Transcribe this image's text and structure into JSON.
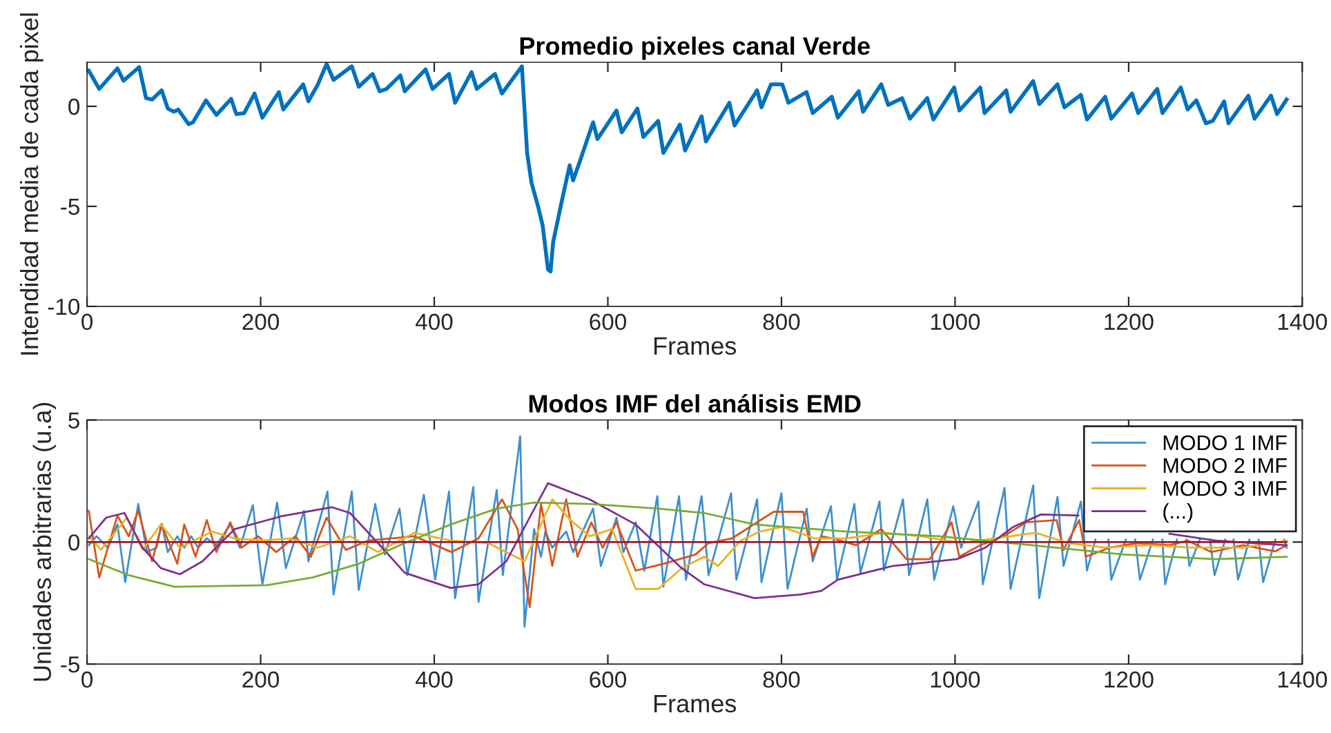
{
  "chart_data": [
    {
      "type": "line",
      "title": "Promedio pixeles canal Verde",
      "xlabel": "Frames",
      "ylabel": "Intendidad media de cada pixel",
      "xlim": [
        0,
        1400
      ],
      "xticks": [
        0,
        200,
        400,
        600,
        800,
        1000,
        1200,
        1400
      ],
      "ylim": [
        -10,
        2.2
      ],
      "yticks": [
        -10,
        -5,
        0
      ],
      "grid": false,
      "legend": false,
      "series": [
        {
          "color": "#0072bd",
          "x": [
            2,
            14,
            35,
            42,
            60,
            68,
            75,
            86,
            93,
            100,
            105,
            117,
            122,
            137,
            149,
            166,
            172,
            181,
            193,
            202,
            221,
            226,
            249,
            255,
            266,
            276,
            284,
            305,
            313,
            329,
            337,
            345,
            361,
            366,
            390,
            398,
            417,
            424,
            443,
            449,
            470,
            478,
            501,
            507,
            512,
            520,
            525,
            531,
            534,
            537,
            547,
            556,
            560,
            568,
            583,
            588,
            610,
            616,
            634,
            641,
            658,
            664,
            683,
            689,
            708,
            713,
            740,
            746,
            772,
            777,
            788,
            801,
            808,
            829,
            836,
            858,
            865,
            889,
            894,
            915,
            923,
            939,
            948,
            968,
            975,
            999,
            1005,
            1029,
            1034,
            1059,
            1064,
            1090,
            1097,
            1118,
            1126,
            1145,
            1152,
            1173,
            1180,
            1204,
            1211,
            1233,
            1239,
            1260,
            1268,
            1278,
            1289,
            1297,
            1310,
            1315,
            1338,
            1345,
            1364,
            1371,
            1382
          ],
          "values": [
            1.78,
            0.87,
            1.9,
            1.28,
            1.96,
            0.41,
            0.34,
            0.8,
            -0.11,
            -0.27,
            -0.16,
            -0.89,
            -0.8,
            0.3,
            -0.43,
            0.37,
            -0.39,
            -0.34,
            0.64,
            -0.57,
            0.71,
            -0.16,
            1.1,
            0.25,
            1.1,
            2.12,
            1.32,
            2.0,
            0.98,
            1.62,
            0.75,
            0.87,
            1.55,
            0.75,
            1.85,
            0.87,
            1.62,
            0.18,
            1.71,
            0.87,
            1.62,
            0.64,
            2.0,
            -2.33,
            -3.81,
            -5.07,
            -5.98,
            -8.15,
            -8.26,
            -6.78,
            -4.73,
            -2.95,
            -3.7,
            -2.72,
            -0.8,
            -1.64,
            -0.21,
            -1.3,
            -0.11,
            -1.53,
            -0.73,
            -2.33,
            -0.91,
            -2.21,
            -0.5,
            -1.76,
            0.18,
            -0.96,
            0.8,
            -0.05,
            1.1,
            1.1,
            0.18,
            0.71,
            -0.34,
            0.48,
            -0.57,
            0.75,
            -0.27,
            1.1,
            0.07,
            0.41,
            -0.62,
            0.41,
            -0.66,
            0.94,
            -0.21,
            0.94,
            -0.34,
            0.8,
            -0.27,
            1.26,
            0.11,
            1.1,
            -0.05,
            0.57,
            -0.66,
            0.48,
            -0.62,
            0.64,
            -0.34,
            0.87,
            -0.34,
            0.94,
            -0.16,
            0.3,
            -0.85,
            -0.73,
            0.25,
            -0.85,
            0.53,
            -0.62,
            0.53,
            -0.39,
            0.34
          ]
        }
      ]
    },
    {
      "type": "line",
      "title": "Modos IMF del análisis EMD",
      "xlabel": "Frames",
      "ylabel": "Unidades arbitrarias (u.a)",
      "xlim": [
        0,
        1400
      ],
      "xticks": [
        0,
        200,
        400,
        600,
        800,
        1000,
        1200,
        1400
      ],
      "ylim": [
        -5,
        5
      ],
      "yticks": [
        -5,
        0,
        5
      ],
      "grid": false,
      "legend": "top right",
      "series": [
        {
          "name": "MODO 1 IMF",
          "color": "#3b8fd0",
          "x": [
            2,
            11,
            24,
            35,
            44,
            59,
            69,
            80,
            86,
            93,
            104,
            112,
            120,
            128,
            138,
            149,
            165,
            176,
            191,
            202,
            219,
            229,
            250,
            255,
            277,
            284,
            305,
            313,
            332,
            343,
            360,
            369,
            388,
            401,
            417,
            424,
            445,
            451,
            472,
            479,
            499,
            504,
            515,
            523,
            528,
            536,
            552,
            560,
            583,
            592,
            610,
            618,
            632,
            642,
            657,
            664,
            682,
            690,
            708,
            716,
            742,
            748,
            772,
            777,
            800,
            807,
            829,
            836,
            857,
            864,
            884,
            891,
            913,
            918,
            940,
            947,
            968,
            976,
            998,
            1007,
            1013,
            1027,
            1032,
            1057,
            1064,
            1090,
            1097,
            1118,
            1125,
            1145,
            1152,
            1161.7,
            1173,
            1176.6,
            1180,
            1196.8,
            1205,
            1207.6,
            1213,
            1227.9,
            1237,
            1238.8,
            1242,
            1255.6,
            1263,
            1266.4,
            1270,
            1282.1,
            1291,
            1293.8,
            1299,
            1311.3,
            1318,
            1320.8,
            1326,
            1339,
            1347,
            1349.8,
            1355,
            1369,
            1374,
            1379.2,
            1382
          ],
          "values": [
            -0.13,
            0.24,
            -0.23,
            0.72,
            -1.64,
            1.56,
            -0.41,
            -0.23,
            0.75,
            -0.41,
            0.24,
            -0.23,
            0.24,
            -0.23,
            0.15,
            -0.13,
            0.72,
            -0.23,
            1.51,
            -1.73,
            1.62,
            -1.07,
            1.28,
            -0.79,
            2.07,
            -2.15,
            2.07,
            -1.96,
            1.56,
            -0.51,
            1.37,
            -1.36,
            1.94,
            -1.54,
            2.07,
            -2.3,
            2.26,
            -2.45,
            2.13,
            -1.36,
            4.33,
            -3.47,
            0.53,
            -0.6,
            0.43,
            -0.23,
            0.43,
            -0.41,
            1.37,
            -0.98,
            1.0,
            -0.41,
            0.81,
            -1.17,
            1.88,
            -1.83,
            1.88,
            -1.54,
            1.88,
            -1.36,
            2.0,
            -1.54,
            1.75,
            -1.64,
            2.0,
            -1.92,
            1.37,
            -0.79,
            1.47,
            -1.54,
            1.56,
            -1.26,
            1.66,
            -1.17,
            1.75,
            -1.36,
            1.75,
            -1.54,
            1.47,
            -0.23,
            0.34,
            1.66,
            -1.73,
            2.22,
            -1.92,
            2.32,
            -2.3,
            1.85,
            -0.98,
            1.66,
            -1.17,
            0.1,
            null,
            0.1,
            -1.54,
            0.1,
            null,
            0.1,
            -1.54,
            0.1,
            null,
            0.1,
            -1.73,
            0.1,
            null,
            0.1,
            -0.98,
            0.1,
            null,
            0.1,
            -1.36,
            0.1,
            null,
            0.1,
            -1.54,
            0.1,
            null,
            0.1,
            -1.64,
            0.1,
            null,
            0.1,
            -0.23
          ]
        },
        {
          "name": "MODO 2 IMF",
          "color": "#d95319",
          "x": [
            2,
            14,
            24,
            35,
            48,
            59,
            75,
            86,
            104,
            112,
            125,
            138,
            149,
            165,
            178,
            197,
            218,
            240,
            258,
            276,
            298,
            324,
            377,
            420,
            451,
            478,
            496,
            510,
            523,
            536,
            552,
            565,
            581,
            594,
            610,
            632,
            664,
            701,
            716,
            743,
            772,
            791,
            825,
            836,
            846,
            859,
            886,
            915,
            944,
            971,
            996,
            1005,
            1029,
            1056,
            1082,
            1117,
            1125,
            1143,
            1151,
            1178,
            1210,
            1247,
            1268,
            1295,
            1332,
            1369,
            1382
          ],
          "values": [
            1.28,
            -1.45,
            -0.23,
            1.09,
            0.24,
            1.28,
            -0.79,
            0.72,
            -0.89,
            0.72,
            -0.6,
            0.9,
            -0.41,
            0.81,
            -0.23,
            0.24,
            -0.41,
            0.24,
            -0.6,
            1.0,
            -0.32,
            0.06,
            0.24,
            -0.41,
            0.15,
            1.75,
            0.53,
            -2.67,
            1.56,
            -0.98,
            1.75,
            -0.6,
            0.81,
            -0.23,
            0.81,
            -1.17,
            -0.89,
            -0.51,
            -0.04,
            0.15,
            0.81,
            1.24,
            1.24,
            -0.6,
            0.24,
            0.15,
            -0.13,
            0.53,
            -0.7,
            -0.7,
            0.81,
            -0.6,
            -0.13,
            0.24,
            0.81,
            0.9,
            -0.32,
            0.9,
            -0.6,
            -0.23,
            -0.04,
            -0.13,
            0.06,
            -0.41,
            -0.13,
            -0.38,
            -0.13
          ]
        },
        {
          "name": "MODO 3 IMF",
          "color": "#edb120",
          "x": [
            2,
            16,
            46,
            64,
            85,
            107,
            144,
            170,
            202,
            234,
            266,
            303,
            335,
            377,
            419,
            462,
            504,
            536,
            557,
            579,
            605,
            632,
            658,
            685,
            711,
            727,
            753,
            775,
            801,
            838,
            875,
            918,
            960,
            1008,
            1045,
            1093,
            1130,
            1173,
            1221,
            1274,
            1332,
            1382
          ],
          "values": [
            0.24,
            -0.32,
            1.0,
            -0.32,
            0.72,
            -0.23,
            0.43,
            0.15,
            0.06,
            0.15,
            -0.23,
            0.24,
            -0.41,
            0.38,
            0.06,
            -0.04,
            -0.79,
            1.75,
            0.9,
            0.24,
            0.53,
            -1.92,
            -1.92,
            -1.07,
            -0.6,
            -0.98,
            0.06,
            0.43,
            0.62,
            0.15,
            0.15,
            0.38,
            0.24,
            -0.04,
            0.15,
            0.38,
            -0.04,
            -0.23,
            -0.13,
            -0.23,
            -0.23,
            0.06
          ]
        },
        {
          "name": "(...)",
          "color": "#7e2f8e",
          "x": [
            2,
            22,
            43,
            64,
            85,
            107,
            133,
            170,
            223,
            282,
            303,
            340,
            366,
            419,
            451,
            483,
            531,
            579,
            632,
            685,
            711,
            769,
            822,
            846,
            865,
            928,
            1002,
            1035,
            1067,
            1099,
            1142,
            1168,
            1247,
            1300,
            1382
          ],
          "values": [
            0.15,
            1.0,
            1.19,
            -0.23,
            -1.07,
            -1.32,
            -0.79,
            0.53,
            1.05,
            1.43,
            1.19,
            -0.23,
            -1.26,
            -1.88,
            -1.73,
            -0.79,
            2.41,
            1.75,
            0.72,
            -1.07,
            -1.73,
            -2.3,
            -2.15,
            -2.0,
            -1.54,
            -0.98,
            -0.7,
            -0.23,
            0.62,
            1.13,
            1.09,
            null,
            0.34,
            0.06,
            -0.13
          ]
        },
        {
          "color": "#77ac30",
          "x": [
            2,
            48,
            101,
            207,
            260,
            313,
            366,
            419,
            472,
            515,
            579,
            658,
            711,
            769,
            875,
            981,
            1088,
            1194,
            1300,
            1382
          ],
          "values": [
            -0.7,
            -1.36,
            -1.83,
            -1.77,
            -1.45,
            -0.89,
            -0.04,
            0.72,
            1.37,
            1.62,
            1.56,
            1.37,
            1.19,
            0.72,
            0.43,
            0.24,
            -0.13,
            -0.51,
            -0.7,
            -0.6
          ]
        },
        {
          "color": "#a2142f",
          "x": [
            2,
            1382
          ],
          "values": [
            0,
            0
          ]
        }
      ]
    }
  ]
}
